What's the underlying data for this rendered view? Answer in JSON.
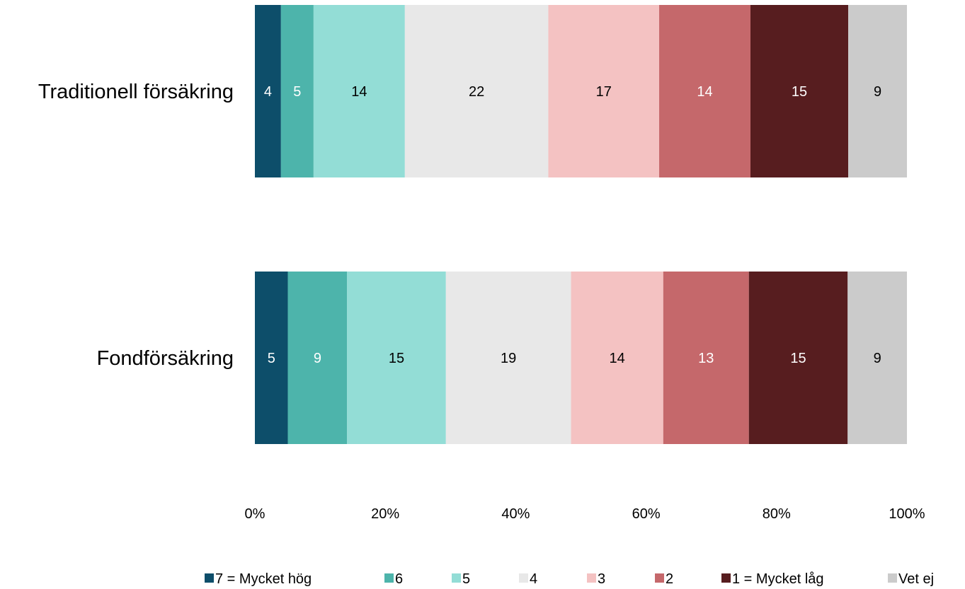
{
  "chart_data": {
    "type": "bar",
    "orientation": "horizontal",
    "stacked": "percent",
    "categories": [
      "Traditionell försäkring",
      "Fondförsäkring"
    ],
    "series": [
      {
        "name": "7 = Mycket hög",
        "values": [
          4,
          5
        ],
        "color": "#0d4e6a",
        "label_color": "#ffffff"
      },
      {
        "name": "6",
        "values": [
          5,
          9
        ],
        "color": "#4db4ab",
        "label_color": "#ffffff"
      },
      {
        "name": "5",
        "values": [
          14,
          15
        ],
        "color": "#93ddd6",
        "label_color": "#000000"
      },
      {
        "name": "4",
        "values": [
          22,
          19
        ],
        "color": "#e8e8e8",
        "label_color": "#000000"
      },
      {
        "name": "3",
        "values": [
          17,
          14
        ],
        "color": "#f4c2c2",
        "label_color": "#000000"
      },
      {
        "name": "2",
        "values": [
          14,
          13
        ],
        "color": "#c5686b",
        "label_color": "#ffffff"
      },
      {
        "name": "1 = Mycket låg",
        "values": [
          15,
          15
        ],
        "color": "#571d1f",
        "label_color": "#ffffff"
      },
      {
        "name": "Vet ej",
        "values": [
          9,
          9
        ],
        "color": "#cbcbcb",
        "label_color": "#000000"
      }
    ],
    "xlim": [
      0,
      100
    ],
    "x_ticks": [
      "0%",
      "20%",
      "40%",
      "60%",
      "80%",
      "100%"
    ],
    "legend_position": "bottom",
    "grid": false
  }
}
